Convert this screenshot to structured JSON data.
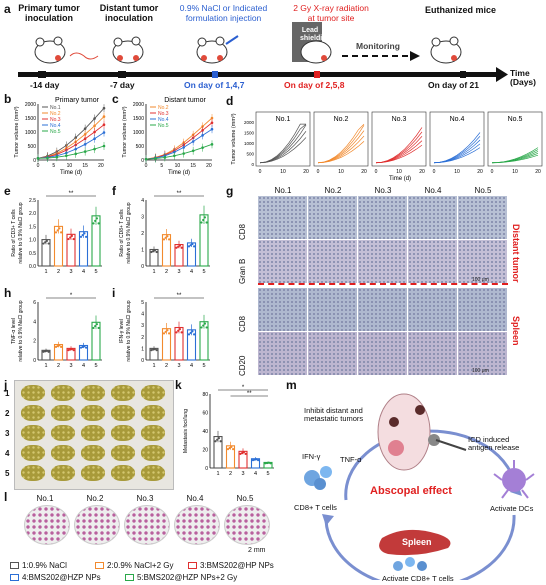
{
  "panel_letters": [
    "a",
    "b",
    "c",
    "d",
    "e",
    "f",
    "g",
    "h",
    "i",
    "j",
    "k",
    "l",
    "m"
  ],
  "timeline": {
    "events": [
      {
        "label": "Primary tumor\ninoculation",
        "day": "-14 day"
      },
      {
        "label": "Distant tumor\ninoculation",
        "day": "-7 day"
      },
      {
        "label": "0.9% NaCl or Indicated\nformulation injection",
        "day": "On day of 1,4,7"
      },
      {
        "label": "2 Gy X-ray radiation\nat tumor site",
        "day": "On day of 2,5,8"
      },
      {
        "label": "Euthanized mice",
        "day": "On day of 21"
      }
    ],
    "shield_label": "Lead\nshielding",
    "monitoring": "Monitoring",
    "axis_label": "Time\n(Days)"
  },
  "colors": {
    "g1": "#555555",
    "g2": "#f28a2e",
    "g3": "#e03030",
    "g4": "#2b6fd6",
    "g5": "#2aa84a"
  },
  "chart_data": [
    {
      "type": "line",
      "title": "Primary tumor",
      "xlabel": "Time (d)",
      "ylabel": "Tumor volume (mm³)",
      "xlim": [
        0,
        20
      ],
      "ylim": [
        0,
        2000
      ],
      "yticks": [
        "0",
        "500",
        "1000",
        "1500",
        "2000"
      ],
      "xticks": [
        "0",
        "5",
        "10",
        "15",
        "20"
      ],
      "series": [
        {
          "name": "No.1",
          "values": [
            60,
            140,
            300,
            520,
            800,
            1120,
            1480,
            1850
          ]
        },
        {
          "name": "No.2",
          "values": [
            60,
            120,
            240,
            420,
            650,
            920,
            1220,
            1550
          ]
        },
        {
          "name": "No.3",
          "values": [
            60,
            110,
            200,
            350,
            540,
            760,
            1000,
            1260
          ]
        },
        {
          "name": "No.4",
          "values": [
            60,
            90,
            150,
            250,
            390,
            560,
            760,
            980
          ]
        },
        {
          "name": "No.5",
          "values": [
            60,
            70,
            100,
            150,
            220,
            300,
            390,
            500
          ]
        }
      ],
      "x": [
        0,
        3,
        6,
        9,
        12,
        15,
        18,
        21
      ]
    },
    {
      "type": "line",
      "title": "Distant tumor",
      "xlabel": "Time (d)",
      "ylabel": "Tumor volume (mm³)",
      "xlim": [
        0,
        20
      ],
      "ylim": [
        0,
        2000
      ],
      "yticks": [
        "0",
        "500",
        "1000",
        "1500",
        "2000"
      ],
      "xticks": [
        "0",
        "5",
        "10",
        "15",
        "20"
      ],
      "series": [
        {
          "name": "No.2",
          "values": [
            30,
            90,
            200,
            380,
            620,
            900,
            1200,
            1500
          ]
        },
        {
          "name": "No.3",
          "values": [
            30,
            80,
            180,
            330,
            540,
            790,
            1060,
            1330
          ]
        },
        {
          "name": "No.4",
          "values": [
            30,
            70,
            150,
            280,
            450,
            660,
            880,
            1100
          ]
        },
        {
          "name": "No.5",
          "values": [
            30,
            50,
            90,
            150,
            230,
            330,
            440,
            560
          ]
        }
      ],
      "x": [
        0,
        3,
        6,
        9,
        12,
        15,
        18,
        21
      ]
    },
    {
      "type": "line",
      "title": "Tumor volume (mm³) individual",
      "xlabel": "Time (d)",
      "panels": [
        "No.1",
        "No.2",
        "No.3",
        "No.4",
        "No.5"
      ],
      "yticks": [
        "0",
        "500",
        "1000",
        "1500",
        "2000"
      ],
      "xticks": [
        "0",
        "10",
        "20"
      ]
    },
    {
      "type": "bar",
      "ylabel": "Ratio of CD3+ T cells relative to 0.9% NaCl group",
      "categories": [
        "1",
        "2",
        "3",
        "4",
        "5"
      ],
      "values": [
        1.0,
        1.5,
        1.2,
        1.3,
        1.9
      ],
      "ylim": [
        0,
        2.5
      ],
      "yticks": [
        "0.0",
        "0.5",
        "1.0",
        "1.5",
        "2.0",
        "2.5"
      ],
      "sig": "**"
    },
    {
      "type": "bar",
      "ylabel": "Ratio of CD8+ T cells relative to 0.9% NaCl group",
      "categories": [
        "1",
        "2",
        "3",
        "4",
        "5"
      ],
      "values": [
        1.0,
        1.9,
        1.3,
        1.4,
        3.1
      ],
      "ylim": [
        0,
        4
      ],
      "yticks": [
        "0",
        "1",
        "2",
        "3",
        "4"
      ],
      "sig": "**"
    },
    {
      "type": "bar",
      "ylabel": "TNF-α level relative to 0.9% NaCl group",
      "categories": [
        "1",
        "2",
        "3",
        "4",
        "5"
      ],
      "values": [
        1.0,
        1.6,
        1.2,
        1.5,
        3.9
      ],
      "ylim": [
        0,
        6
      ],
      "yticks": [
        "0",
        "2",
        "4",
        "6"
      ],
      "sig": "*"
    },
    {
      "type": "bar",
      "ylabel": "IFN-γ level relative to 0.9% NaCl group",
      "categories": [
        "1",
        "2",
        "3",
        "4",
        "5"
      ],
      "values": [
        1.0,
        2.7,
        2.8,
        2.6,
        3.3
      ],
      "ylim": [
        0,
        5
      ],
      "yticks": [
        "0",
        "1",
        "2",
        "3",
        "4",
        "5"
      ],
      "sig": "**"
    },
    {
      "type": "bar",
      "ylabel": "Metastasis foci/lung",
      "categories": [
        "1",
        "2",
        "3",
        "4",
        "5"
      ],
      "values": [
        34,
        24,
        18,
        10,
        6
      ],
      "ylim": [
        0,
        80
      ],
      "yticks": [
        "0",
        "20",
        "40",
        "60",
        "80"
      ],
      "sig": [
        "*",
        "**"
      ]
    }
  ],
  "histology": {
    "columns": [
      "No.1",
      "No.2",
      "No.3",
      "No.4",
      "No.5"
    ],
    "rows": [
      "CD8",
      "Gran B",
      "CD8",
      "CD20"
    ],
    "group_labels": [
      "Distant tumor",
      "Spleen"
    ],
    "scale": "100 μm"
  },
  "lungs": {
    "rows": [
      "1",
      "2",
      "3",
      "4",
      "5"
    ]
  },
  "lung_sections": {
    "labels": [
      "No.1",
      "No.2",
      "No.3",
      "No.4",
      "No.5"
    ],
    "scale": "2 mm"
  },
  "scheme": {
    "inhibit": "Inhibit distant and\nmetastatic tumors",
    "ifn": "IFN-γ",
    "tnf": "TNF-α",
    "icd": "ICD induced\nantigen release",
    "abscopal": "Abscopal effect",
    "cd8": "CD8+ T cells",
    "dcs": "Activate DCs",
    "spleen": "Spleen",
    "activate_cd8": "Activate CD8+ T cells"
  },
  "legend": [
    {
      "label": "1:0.9% NaCl",
      "color": "#555555"
    },
    {
      "label": "2:0.9% NaCl+2 Gy",
      "color": "#f28a2e"
    },
    {
      "label": "3:BMS202@HP NPs",
      "color": "#e03030"
    },
    {
      "label": "4:BMS202@HZP NPs",
      "color": "#2b6fd6"
    },
    {
      "label": "5:BMS202@HZP NPs+2 Gy",
      "color": "#2aa84a"
    }
  ]
}
